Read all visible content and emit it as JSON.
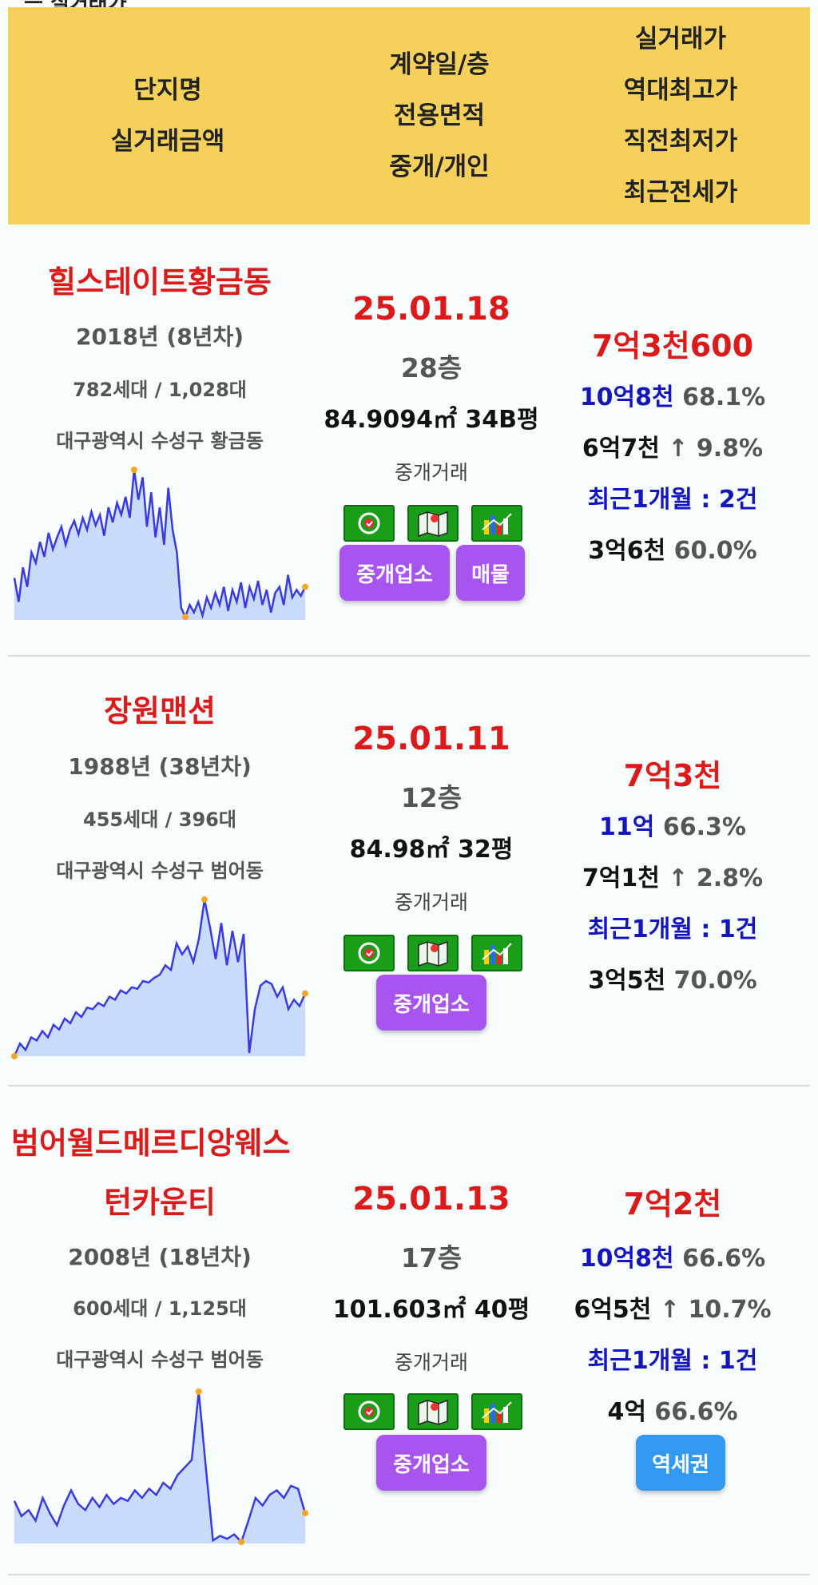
{
  "top_fragment": "ㅡ 실거래가",
  "header": {
    "col1": [
      "단지명",
      "실거래금액"
    ],
    "col2": [
      "계약일/층",
      "전용면적",
      "중개/개인"
    ],
    "col3": [
      "실거래가",
      "역대최고가",
      "직전최저가",
      "최근전세가"
    ]
  },
  "listings": [
    {
      "name": "힐스테이트황금동",
      "year": "2018년 (8년차)",
      "units": "782세대 / 1,028대",
      "address": "대구광역시 수성구 황금동",
      "date": "25.01.18",
      "floor": "28층",
      "area": "84.9094㎡ 34B평",
      "deal_type": "중개거래",
      "price": "7억3천600",
      "high_price": "10억8천",
      "high_ratio": "68.1%",
      "low_price": "6억7천",
      "low_change": "↑ 9.8%",
      "recent_label": "최근1개월 : 2건",
      "jeonse_price": "3억6천",
      "jeonse_ratio": "60.0%",
      "btn_agent": "중개업소",
      "btn_listing": "매물",
      "trend": [
        0.28,
        0.12,
        0.35,
        0.22,
        0.45,
        0.38,
        0.52,
        0.42,
        0.58,
        0.47,
        0.55,
        0.62,
        0.5,
        0.6,
        0.66,
        0.57,
        0.68,
        0.6,
        0.72,
        0.63,
        0.7,
        0.56,
        0.75,
        0.65,
        0.78,
        0.7,
        0.82,
        0.68,
        1.0,
        0.8,
        0.95,
        0.62,
        0.85,
        0.55,
        0.75,
        0.5,
        0.88,
        0.6,
        0.45,
        0.08,
        0.02,
        0.1,
        0.05,
        0.12,
        0.03,
        0.15,
        0.08,
        0.18,
        0.1,
        0.22,
        0.06,
        0.2,
        0.12,
        0.25,
        0.08,
        0.22,
        0.14,
        0.26,
        0.1,
        0.2,
        0.05,
        0.18,
        0.22,
        0.1,
        0.3,
        0.15,
        0.2,
        0.16,
        0.22
      ]
    },
    {
      "name": "장원맨션",
      "year": "1988년 (38년차)",
      "units": "455세대 / 396대",
      "address": "대구광역시 수성구 범어동",
      "date": "25.01.11",
      "floor": "12층",
      "area": "84.98㎡ 32평",
      "deal_type": "중개거래",
      "price": "7억3천",
      "high_price": "11억",
      "high_ratio": "66.3%",
      "low_price": "7억1천",
      "low_change": "↑ 2.8%",
      "recent_label": "최근1개월 : 1건",
      "jeonse_price": "3억5천",
      "jeonse_ratio": "70.0%",
      "btn_agent": "중개업소",
      "trend": [
        0.0,
        0.08,
        0.04,
        0.12,
        0.1,
        0.16,
        0.12,
        0.2,
        0.17,
        0.24,
        0.21,
        0.28,
        0.25,
        0.31,
        0.3,
        0.34,
        0.32,
        0.38,
        0.36,
        0.42,
        0.4,
        0.44,
        0.43,
        0.48,
        0.47,
        0.5,
        0.52,
        0.58,
        0.55,
        0.72,
        0.65,
        0.7,
        0.6,
        0.75,
        1.0,
        0.82,
        0.62,
        0.85,
        0.58,
        0.8,
        0.6,
        0.78,
        0.02,
        0.3,
        0.45,
        0.48,
        0.46,
        0.38,
        0.44,
        0.3,
        0.36,
        0.32,
        0.4
      ]
    },
    {
      "name": "범어월드메르디앙웨스",
      "name2": "턴카운티",
      "year": "2008년 (18년차)",
      "units": "600세대 / 1,125대",
      "address": "대구광역시 수성구 범어동",
      "date": "25.01.13",
      "floor": "17층",
      "area": "101.603㎡ 40평",
      "deal_type": "중개거래",
      "price": "7억2천",
      "high_price": "10억8천",
      "high_ratio": "66.6%",
      "low_price": "6억5천",
      "low_change": "↑ 10.7%",
      "recent_label": "최근1개월 : 1건",
      "jeonse_price": "4억",
      "jeonse_ratio": "66.6%",
      "btn_agent": "중개업소",
      "btn_station": "역세권",
      "trend": [
        0.28,
        0.18,
        0.22,
        0.15,
        0.3,
        0.2,
        0.12,
        0.25,
        0.35,
        0.26,
        0.22,
        0.3,
        0.24,
        0.32,
        0.26,
        0.3,
        0.28,
        0.35,
        0.3,
        0.36,
        0.32,
        0.4,
        0.36,
        0.45,
        0.5,
        0.55,
        1.0,
        0.5,
        0.02,
        0.05,
        0.03,
        0.06,
        0.01,
        0.15,
        0.3,
        0.25,
        0.32,
        0.35,
        0.3,
        0.38,
        0.36,
        0.2
      ]
    }
  ],
  "colors": {
    "header_bg": "#f5d15c",
    "name_red": "#dd1a1a",
    "blue_text": "#1515c0",
    "purple_button": "#a855f0",
    "blue_button": "#3299f0",
    "chart_line": "#3a3ae0",
    "chart_fill": "#c9dbfb",
    "chart_marker": "#f5a623"
  },
  "icons": [
    "clock-icon",
    "map-icon",
    "bar-chart-icon"
  ]
}
